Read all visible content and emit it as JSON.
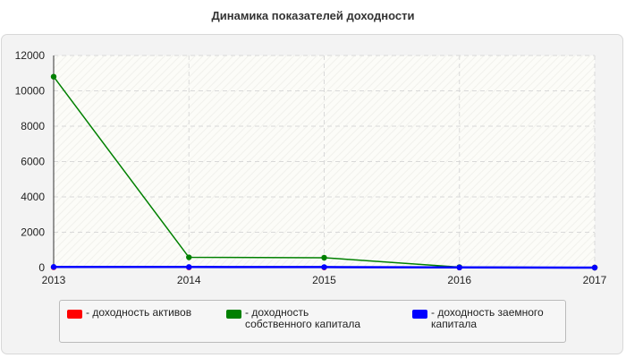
{
  "chart_data": {
    "type": "line",
    "title": "Динамика показателей доходности",
    "xlabel": "",
    "ylabel": "",
    "categories": [
      "2013",
      "2014",
      "2015",
      "2016",
      "2017"
    ],
    "ylim": [
      0,
      12000
    ],
    "yticks": [
      "0",
      "2000",
      "4000",
      "6000",
      "8000",
      "10000",
      "12000"
    ],
    "grid": true,
    "legend_position": "bottom",
    "series": [
      {
        "name": "- доходность активов",
        "color": "#ff0000",
        "values": [
          20,
          15,
          12,
          5,
          0
        ]
      },
      {
        "name": "- доходность собственного капитала",
        "color": "#008000",
        "values": [
          10800,
          580,
          560,
          30,
          0
        ]
      },
      {
        "name": "- доходность заемного капитала",
        "color": "#0000ff",
        "values": [
          40,
          35,
          30,
          10,
          0
        ]
      }
    ]
  }
}
